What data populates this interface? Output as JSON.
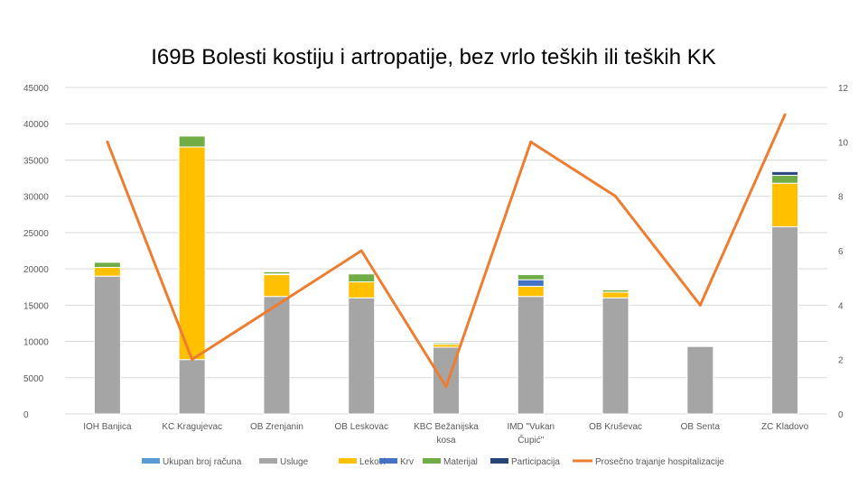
{
  "chart_data": {
    "type": "bar",
    "title": "I69B Bolesti kostiju i artropatije, bez vrlo teških ili teških KK",
    "stacked": true,
    "categories": [
      [
        "IOH Banjica"
      ],
      [
        "KC Kragujevac"
      ],
      [
        "OB Zrenjanin"
      ],
      [
        "OB Leskovac"
      ],
      [
        "KBC Bežanijska",
        "kosa"
      ],
      [
        "IMD \"Vukan",
        "Čupić\""
      ],
      [
        "OB Kruševac"
      ],
      [
        "OB Senta"
      ],
      [
        "ZC Kladovo"
      ]
    ],
    "ylim": [
      0,
      45000
    ],
    "y_ticks": [
      "0",
      "5000",
      "10000",
      "15000",
      "20000",
      "25000",
      "30000",
      "35000",
      "40000",
      "45000"
    ],
    "y2lim": [
      0,
      12
    ],
    "y2_ticks": [
      "0",
      "2",
      "4",
      "6",
      "8",
      "10",
      "12"
    ],
    "grid": true,
    "legend_position": "bottom",
    "series": [
      {
        "name": "Ukupan broj računa",
        "kind": "bar",
        "color": "#5B9BD5",
        "values": [
          0,
          0,
          0,
          0,
          0,
          0,
          0,
          0,
          0
        ]
      },
      {
        "name": "Usluge",
        "kind": "bar",
        "color": "#A5A5A5",
        "values": [
          19000,
          7500,
          16200,
          16000,
          9200,
          16200,
          16000,
          9300,
          25800
        ]
      },
      {
        "name": "Lekovi",
        "kind": "bar",
        "color": "#FFC000",
        "values": [
          1200,
          29300,
          3000,
          2200,
          400,
          1400,
          800,
          0,
          6000
        ]
      },
      {
        "name": "Krv",
        "kind": "bar",
        "color": "#4472C4",
        "values": [
          0,
          0,
          100,
          0,
          0,
          900,
          0,
          0,
          0
        ]
      },
      {
        "name": "Materijal",
        "kind": "bar",
        "color": "#70AD47",
        "values": [
          700,
          1500,
          300,
          1100,
          200,
          700,
          300,
          0,
          1100
        ]
      },
      {
        "name": "Participacija",
        "kind": "bar",
        "color": "#264478",
        "values": [
          0,
          0,
          0,
          0,
          0,
          0,
          0,
          0,
          500
        ]
      },
      {
        "name": "Prosečno trajanje hospitalizacije",
        "kind": "line",
        "axis": "right",
        "color": "#ED7D31",
        "values": [
          10,
          2,
          4,
          6,
          1,
          10,
          8,
          4,
          11
        ]
      }
    ]
  }
}
